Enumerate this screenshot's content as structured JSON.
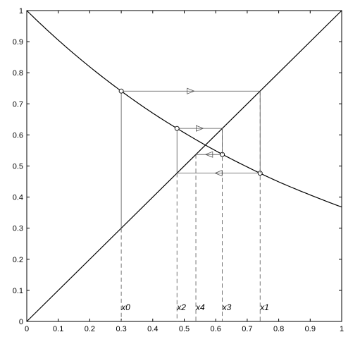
{
  "chart_data": {
    "type": "line",
    "title": "",
    "xlabel": "",
    "ylabel": "",
    "xlim": [
      0,
      1
    ],
    "ylim": [
      0,
      1
    ],
    "x_ticks": [
      "0",
      "0.1",
      "0.2",
      "0.3",
      "0.4",
      "0.5",
      "0.6",
      "0.7",
      "0.8",
      "0.9",
      "1"
    ],
    "y_ticks": [
      "0",
      "0.1",
      "0.2",
      "0.3",
      "0.4",
      "0.5",
      "0.6",
      "0.7",
      "0.8",
      "0.9",
      "1"
    ],
    "grid": false,
    "series": [
      {
        "x": [
          0,
          0.1,
          0.2,
          0.3,
          0.4,
          0.5,
          0.6,
          0.7,
          0.8,
          0.9,
          1
        ],
        "y": [
          1,
          0.905,
          0.819,
          0.741,
          0.67,
          0.607,
          0.549,
          0.497,
          0.449,
          0.407,
          0.368
        ]
      },
      {
        "x": [
          0,
          1
        ],
        "y": [
          0,
          1
        ]
      }
    ],
    "iterates": [
      {
        "label": "x0",
        "x": 0.3
      },
      {
        "label": "x1",
        "x": 0.741
      },
      {
        "label": "x2",
        "x": 0.477
      },
      {
        "label": "x3",
        "x": 0.621
      },
      {
        "label": "x4",
        "x": 0.537
      }
    ],
    "line_color": "#000000",
    "guide_color": "#555555"
  }
}
